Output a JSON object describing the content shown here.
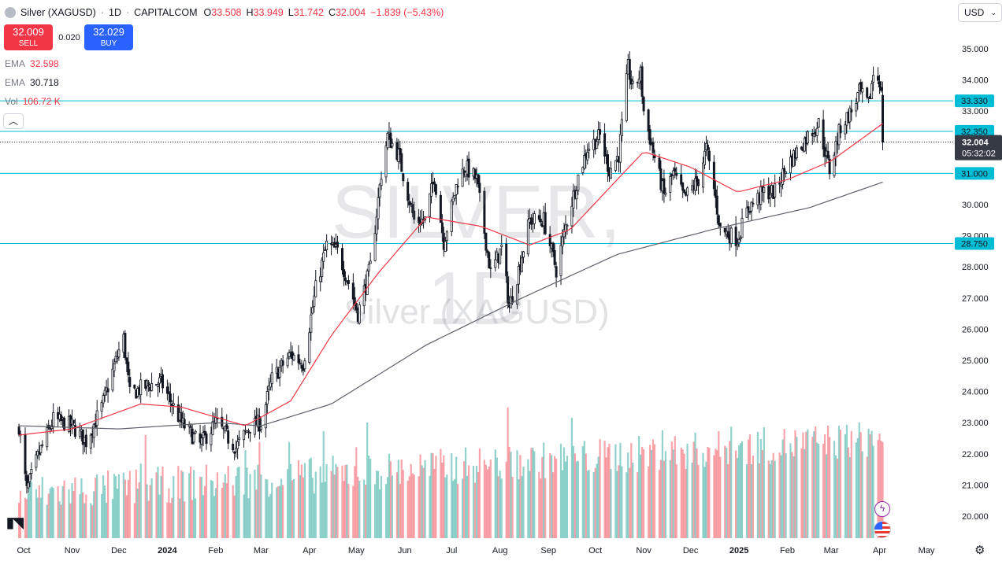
{
  "header": {
    "symbol_name": "Silver (XAGUSD)",
    "interval": "1D",
    "source": "CAPITALCOM",
    "open_label": "O",
    "open": "33.508",
    "high_label": "H",
    "high": "33.949",
    "low_label": "L",
    "low": "31.742",
    "close_label": "C",
    "close": "32.004",
    "change": "−1.839 (−5.43%)"
  },
  "trade": {
    "sell_price": "32.009",
    "sell_label": "SELL",
    "spread": "0.020",
    "buy_price": "32.029",
    "buy_label": "BUY"
  },
  "indicators": {
    "ema1_label": "EMA",
    "ema1_value": "32.598",
    "ema2_label": "EMA",
    "ema2_value": "30.718",
    "vol_label": "Vol",
    "vol_value": "106.72 K"
  },
  "collapse_icon": "chevron-up-icon",
  "currency": "USD",
  "watermark": {
    "title": "SILVER, 1D",
    "subtitle": "Silver (XAGUSD)"
  },
  "colors": {
    "up": "#26a69a",
    "down": "#f23645",
    "candle": "#131722",
    "ema_fast": "#f23645",
    "ema_slow": "#5d606b",
    "hline": "#00bcd4",
    "label_bg": "#00bcd4",
    "price_tag_bg": "#363a45"
  },
  "chart_data": {
    "type": "candlestick",
    "symbol": "Silver (XAGUSD)",
    "interval": "1D",
    "y_axis": {
      "range": [
        19.6,
        35.5
      ],
      "ticks": [
        "35.000",
        "34.000",
        "33.000",
        "32.000",
        "31.000",
        "30.000",
        "29.000",
        "28.000",
        "27.000",
        "26.000",
        "25.000",
        "24.000",
        "23.000",
        "22.000",
        "21.000",
        "20.000"
      ]
    },
    "x_axis": {
      "ticks": [
        "Oct",
        "Nov",
        "Dec",
        "2024",
        "Feb",
        "Mar",
        "Apr",
        "May",
        "Jun",
        "Jul",
        "Aug",
        "Sep",
        "Oct",
        "Nov",
        "Dec",
        "2025",
        "Feb",
        "Mar",
        "Apr",
        "May"
      ]
    },
    "horizontal_levels": [
      {
        "price": 33.33,
        "label": "33.330"
      },
      {
        "price": 32.35,
        "label": "32.350"
      },
      {
        "price": 31.0,
        "label": "31.000"
      },
      {
        "price": 28.75,
        "label": "28.750"
      }
    ],
    "last_price": {
      "price": 32.004,
      "label": "32.004",
      "countdown": "05:32:02"
    },
    "price_anchors": [
      [
        "2023-09-28",
        22.9
      ],
      [
        "2023-10-03",
        20.8
      ],
      [
        "2023-10-10",
        21.9
      ],
      [
        "2023-10-20",
        23.1
      ],
      [
        "2023-11-01",
        22.9
      ],
      [
        "2023-11-10",
        22.4
      ],
      [
        "2023-11-20",
        23.5
      ],
      [
        "2023-12-01",
        25.3
      ],
      [
        "2023-12-04",
        25.7
      ],
      [
        "2023-12-08",
        23.9
      ],
      [
        "2023-12-15",
        24.1
      ],
      [
        "2023-12-20",
        24.2
      ],
      [
        "2023-12-28",
        24.3
      ],
      [
        "2024-01-10",
        23.0
      ],
      [
        "2024-01-22",
        22.3
      ],
      [
        "2024-02-01",
        23.0
      ],
      [
        "2024-02-14",
        22.2
      ],
      [
        "2024-02-23",
        22.9
      ],
      [
        "2024-03-01",
        23.0
      ],
      [
        "2024-03-08",
        24.4
      ],
      [
        "2024-03-20",
        25.2
      ],
      [
        "2024-03-28",
        24.9
      ],
      [
        "2024-04-05",
        27.3
      ],
      [
        "2024-04-12",
        28.7
      ],
      [
        "2024-04-19",
        28.5
      ],
      [
        "2024-04-26",
        27.5
      ],
      [
        "2024-05-02",
        26.5
      ],
      [
        "2024-05-10",
        28.0
      ],
      [
        "2024-05-17",
        31.0
      ],
      [
        "2024-05-21",
        32.2
      ],
      [
        "2024-05-28",
        31.6
      ],
      [
        "2024-06-07",
        29.5
      ],
      [
        "2024-06-14",
        29.5
      ],
      [
        "2024-06-20",
        30.9
      ],
      [
        "2024-06-26",
        28.8
      ],
      [
        "2024-07-05",
        30.8
      ],
      [
        "2024-07-10",
        31.2
      ],
      [
        "2024-07-17",
        30.8
      ],
      [
        "2024-07-26",
        27.8
      ],
      [
        "2024-08-02",
        28.6
      ],
      [
        "2024-08-07",
        26.7
      ],
      [
        "2024-08-12",
        27.7
      ],
      [
        "2024-08-20",
        29.5
      ],
      [
        "2024-08-29",
        29.5
      ],
      [
        "2024-09-06",
        27.9
      ],
      [
        "2024-09-12",
        29.3
      ],
      [
        "2024-09-20",
        30.9
      ],
      [
        "2024-09-26",
        31.8
      ],
      [
        "2024-10-04",
        32.2
      ],
      [
        "2024-10-10",
        31.1
      ],
      [
        "2024-10-16",
        31.6
      ],
      [
        "2024-10-22",
        34.4
      ],
      [
        "2024-10-25",
        33.7
      ],
      [
        "2024-10-30",
        34.2
      ],
      [
        "2024-11-01",
        33.0
      ],
      [
        "2024-11-07",
        31.7
      ],
      [
        "2024-11-14",
        30.3
      ],
      [
        "2024-11-20",
        31.0
      ],
      [
        "2024-11-27",
        30.2
      ],
      [
        "2024-12-06",
        30.8
      ],
      [
        "2024-12-11",
        31.8
      ],
      [
        "2024-12-16",
        30.5
      ],
      [
        "2024-12-20",
        29.2
      ],
      [
        "2024-12-31",
        28.9
      ],
      [
        "2025-01-07",
        29.9
      ],
      [
        "2025-01-17",
        30.4
      ],
      [
        "2025-01-24",
        30.4
      ],
      [
        "2025-01-31",
        31.2
      ],
      [
        "2025-02-07",
        31.7
      ],
      [
        "2025-02-14",
        32.2
      ],
      [
        "2025-02-21",
        32.6
      ],
      [
        "2025-02-28",
        31.1
      ],
      [
        "2025-03-07",
        32.5
      ],
      [
        "2025-03-14",
        33.0
      ],
      [
        "2025-03-19",
        33.6
      ],
      [
        "2025-03-25",
        33.2
      ],
      [
        "2025-03-28",
        34.2
      ],
      [
        "2025-04-01",
        34.0
      ],
      [
        "2025-04-02",
        33.5
      ]
    ],
    "last_candle": {
      "date": "2025-04-03",
      "open": 33.508,
      "high": 33.949,
      "low": 31.742,
      "close": 32.004
    },
    "ema_fast_anchors": [
      [
        "2023-09-28",
        22.6
      ],
      [
        "2023-11-01",
        22.8
      ],
      [
        "2023-12-15",
        23.6
      ],
      [
        "2024-01-10",
        23.5
      ],
      [
        "2024-02-20",
        22.9
      ],
      [
        "2024-03-20",
        23.7
      ],
      [
        "2024-04-15",
        25.8
      ],
      [
        "2024-05-15",
        27.8
      ],
      [
        "2024-06-15",
        29.6
      ],
      [
        "2024-07-20",
        29.3
      ],
      [
        "2024-08-20",
        28.7
      ],
      [
        "2024-09-15",
        29.2
      ],
      [
        "2024-10-15",
        30.8
      ],
      [
        "2024-11-01",
        31.7
      ],
      [
        "2024-12-01",
        31.2
      ],
      [
        "2024-12-31",
        30.4
      ],
      [
        "2025-02-01",
        30.8
      ],
      [
        "2025-03-01",
        31.4
      ],
      [
        "2025-04-03",
        32.6
      ]
    ],
    "ema_slow_anchors": [
      [
        "2023-09-28",
        22.9
      ],
      [
        "2023-12-01",
        22.8
      ],
      [
        "2024-02-01",
        23.0
      ],
      [
        "2024-03-01",
        22.9
      ],
      [
        "2024-04-15",
        23.6
      ],
      [
        "2024-06-15",
        25.5
      ],
      [
        "2024-08-15",
        27.0
      ],
      [
        "2024-10-15",
        28.4
      ],
      [
        "2024-12-15",
        29.2
      ],
      [
        "2025-02-15",
        29.9
      ],
      [
        "2025-04-03",
        30.72
      ]
    ],
    "volume_range_k": [
      0,
      220
    ]
  }
}
